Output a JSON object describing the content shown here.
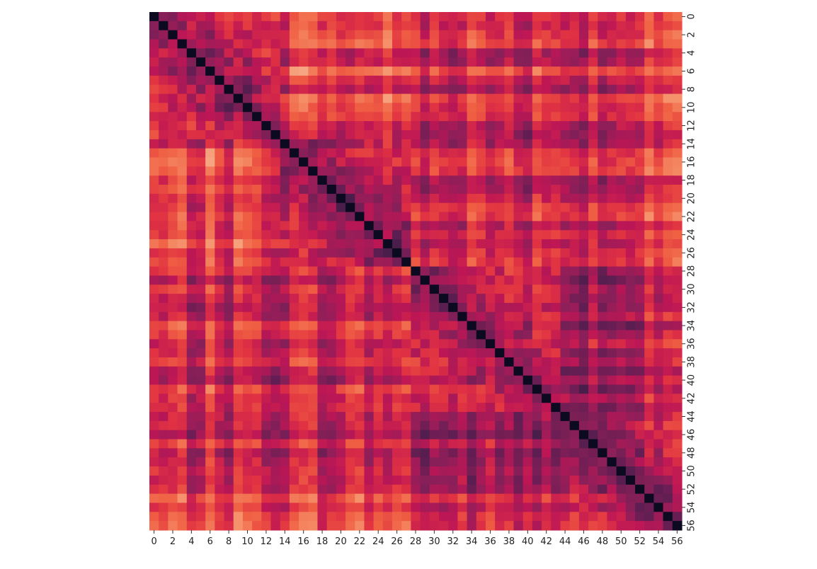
{
  "chart_data": {
    "type": "heatmap",
    "title": "",
    "xlabel": "",
    "ylabel": "",
    "n": 57,
    "x_ticks": [
      0,
      2,
      4,
      6,
      8,
      10,
      12,
      14,
      16,
      18,
      20,
      22,
      24,
      26,
      28,
      30,
      32,
      34,
      36,
      38,
      40,
      42,
      44,
      46,
      48,
      50,
      52,
      54,
      56
    ],
    "y_ticks": [
      0,
      2,
      4,
      6,
      8,
      10,
      12,
      14,
      16,
      18,
      20,
      22,
      24,
      26,
      28,
      30,
      32,
      34,
      36,
      38,
      40,
      42,
      44,
      46,
      48,
      50,
      52,
      54,
      56
    ],
    "y_axis_position": "right",
    "y_tick_rotation": -90,
    "colormap": "rocket",
    "colors": [
      "#03051a",
      "#2d1e3e",
      "#5c1e51",
      "#8c1f59",
      "#bd1655",
      "#e13342",
      "#f06043",
      "#f5916b",
      "#f7c0a1",
      "#faebdd"
    ],
    "colorbar": false,
    "blocks": [
      {
        "start": 0,
        "end": 13,
        "level": 0.3
      },
      {
        "start": 14,
        "end": 27,
        "level": 0.28
      },
      {
        "start": 28,
        "end": 43,
        "level": 0.3
      },
      {
        "start": 44,
        "end": 56,
        "level": 0.25
      }
    ]
  }
}
